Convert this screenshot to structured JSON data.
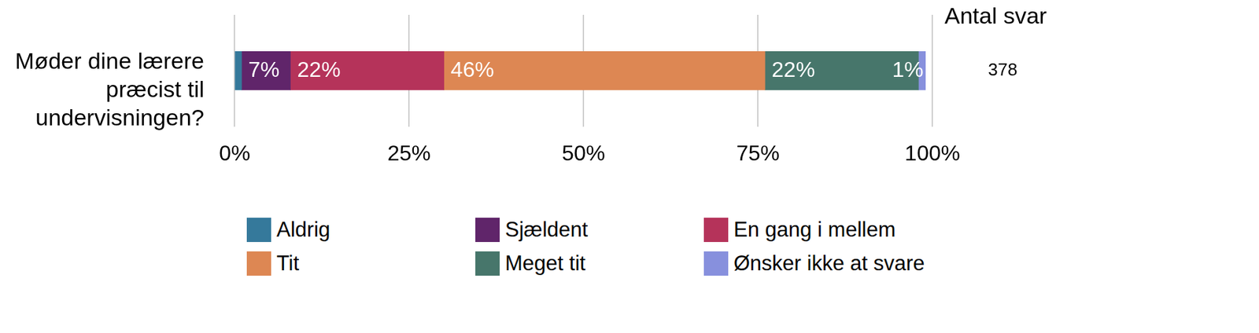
{
  "chart_data": {
    "type": "bar",
    "orientation": "horizontal",
    "stacked": true,
    "categories": [
      "Møder dine lærere præcist til undervisningen?"
    ],
    "series": [
      {
        "name": "Aldrig",
        "color": "#35799b",
        "values": [
          1
        ],
        "value_labels": [
          null
        ]
      },
      {
        "name": "Sjældent",
        "color": "#60256a",
        "values": [
          7
        ],
        "value_labels": [
          "7%"
        ]
      },
      {
        "name": "En gang i mellem",
        "color": "#b5335a",
        "values": [
          22
        ],
        "value_labels": [
          "22%"
        ]
      },
      {
        "name": "Tit",
        "color": "#dd8753",
        "values": [
          46
        ],
        "value_labels": [
          "46%"
        ]
      },
      {
        "name": "Meget tit",
        "color": "#47766b",
        "values": [
          22
        ],
        "value_labels": [
          "22%"
        ]
      },
      {
        "name": "Ønsker ikke at svare",
        "color": "#8790dd",
        "values": [
          1
        ],
        "value_labels": [
          "1%"
        ]
      }
    ],
    "xlim": [
      0,
      100
    ],
    "xticks": [
      {
        "value": 0,
        "label": "0%"
      },
      {
        "value": 25,
        "label": "25%"
      },
      {
        "value": 50,
        "label": "50%"
      },
      {
        "value": 75,
        "label": "75%"
      },
      {
        "value": 100,
        "label": "100%"
      }
    ],
    "grid": true,
    "data_labels": true,
    "legend": "bottom",
    "count_label": "Antal svar",
    "counts": [
      378
    ]
  }
}
